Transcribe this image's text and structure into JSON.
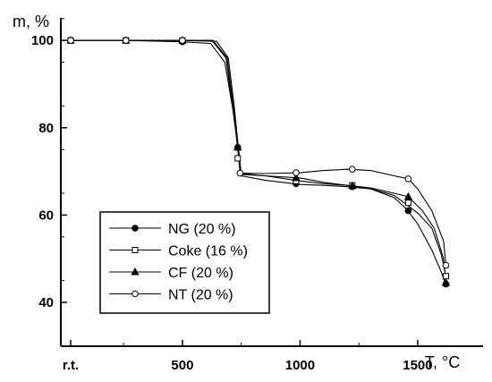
{
  "chart_data": {
    "type": "line",
    "title": "",
    "xlabel": "T, °C",
    "ylabel": "m, %",
    "xlim": [
      25,
      1750
    ],
    "ylim": [
      37,
      107
    ],
    "x_ticks": [
      {
        "value": 25,
        "label": "r.t."
      },
      {
        "value": 500,
        "label": "500"
      },
      {
        "value": 1000,
        "label": "1000"
      },
      {
        "value": 1500,
        "label": "1500"
      }
    ],
    "y_ticks": [
      40,
      60,
      80,
      100
    ],
    "grid": false,
    "legend_position": "bottom-left",
    "series": [
      {
        "name": "NG (20 %)",
        "marker": "filled-circle",
        "points": [
          [
            25,
            100
          ],
          [
            260,
            100
          ],
          [
            500,
            99.7
          ],
          [
            620,
            99.3
          ],
          [
            680,
            95
          ],
          [
            715,
            84
          ],
          [
            735,
            76
          ],
          [
            750,
            69
          ],
          [
            850,
            68
          ],
          [
            1000,
            67
          ],
          [
            1100,
            66.8
          ],
          [
            1200,
            66.5
          ],
          [
            1300,
            66
          ],
          [
            1400,
            64
          ],
          [
            1450,
            61.5
          ],
          [
            1500,
            58
          ],
          [
            1560,
            52
          ],
          [
            1600,
            47
          ],
          [
            1620,
            44
          ]
        ],
        "markers": [
          [
            25,
            100
          ],
          [
            260,
            100
          ],
          [
            500,
            99.7
          ],
          [
            735,
            75.5
          ],
          [
            983,
            67.2
          ],
          [
            1222,
            66.5
          ],
          [
            1460,
            61
          ],
          [
            1620,
            44.2
          ]
        ]
      },
      {
        "name": "Coke (16 %)",
        "marker": "open-square",
        "points": [
          [
            25,
            100
          ],
          [
            260,
            100
          ],
          [
            500,
            100
          ],
          [
            630,
            100
          ],
          [
            690,
            96
          ],
          [
            718,
            84
          ],
          [
            733,
            76
          ],
          [
            748,
            69.5
          ],
          [
            850,
            69
          ],
          [
            1000,
            67.8
          ],
          [
            1100,
            67.2
          ],
          [
            1200,
            66.8
          ],
          [
            1300,
            66
          ],
          [
            1400,
            64.5
          ],
          [
            1450,
            62.5
          ],
          [
            1500,
            60.5
          ],
          [
            1560,
            57
          ],
          [
            1600,
            51
          ],
          [
            1620,
            46
          ]
        ],
        "markers": [
          [
            25,
            100
          ],
          [
            260,
            100
          ],
          [
            500,
            100
          ],
          [
            735,
            73
          ],
          [
            983,
            67.8
          ],
          [
            1222,
            66.8
          ],
          [
            1460,
            62.8
          ],
          [
            1620,
            46
          ]
        ]
      },
      {
        "name": "CF (20 %)",
        "marker": "filled-triangle",
        "points": [
          [
            25,
            100
          ],
          [
            260,
            100
          ],
          [
            500,
            100
          ],
          [
            645,
            99.8
          ],
          [
            695,
            96
          ],
          [
            720,
            85
          ],
          [
            735,
            77
          ],
          [
            750,
            69.3
          ],
          [
            850,
            69
          ],
          [
            1000,
            68.5
          ],
          [
            1100,
            67.5
          ],
          [
            1200,
            66.8
          ],
          [
            1300,
            66.2
          ],
          [
            1400,
            65
          ],
          [
            1460,
            64.2
          ],
          [
            1520,
            61
          ],
          [
            1570,
            57
          ],
          [
            1610,
            50
          ],
          [
            1620,
            44.5
          ]
        ],
        "markers": [
          [
            25,
            100
          ],
          [
            260,
            100
          ],
          [
            500,
            100
          ],
          [
            735,
            75.5
          ],
          [
            983,
            68.5
          ],
          [
            1222,
            66.7
          ],
          [
            1460,
            64.2
          ],
          [
            1620,
            44.5
          ]
        ]
      },
      {
        "name": "NT (20 %)",
        "marker": "open-circle",
        "points": [
          [
            25,
            100
          ],
          [
            260,
            100
          ],
          [
            500,
            100
          ],
          [
            625,
            100
          ],
          [
            685,
            96
          ],
          [
            715,
            84
          ],
          [
            732,
            77
          ],
          [
            745,
            69.6
          ],
          [
            850,
            69.5
          ],
          [
            1000,
            69.7
          ],
          [
            1100,
            70.2
          ],
          [
            1200,
            70.5
          ],
          [
            1300,
            70.2
          ],
          [
            1400,
            69
          ],
          [
            1460,
            68.3
          ],
          [
            1500,
            66
          ],
          [
            1560,
            61
          ],
          [
            1610,
            54
          ],
          [
            1620,
            48.5
          ]
        ],
        "markers": [
          [
            25,
            100
          ],
          [
            260,
            100
          ],
          [
            500,
            100
          ],
          [
            745,
            69.6
          ],
          [
            983,
            69.7
          ],
          [
            1222,
            70.5
          ],
          [
            1460,
            68.3
          ],
          [
            1620,
            48.5
          ]
        ]
      }
    ]
  }
}
